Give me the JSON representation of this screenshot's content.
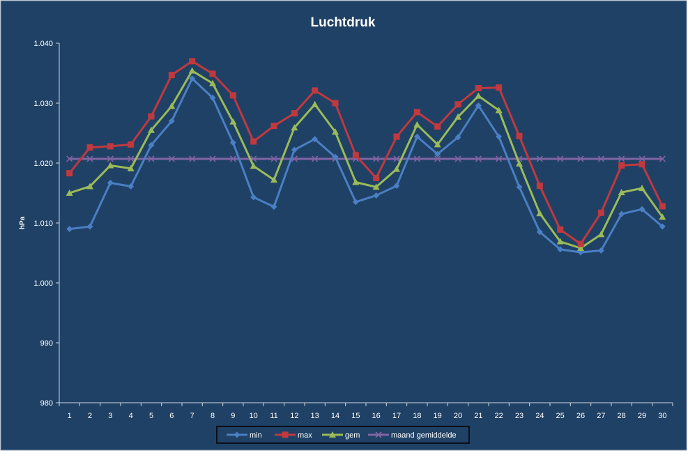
{
  "chart_data": {
    "type": "line",
    "title": "Luchtdruk",
    "ylabel": "hPa",
    "xlabel": "",
    "ylim": [
      980,
      1040
    ],
    "yticks": [
      980,
      990,
      1000,
      1010,
      1020,
      1030,
      1040
    ],
    "ytick_labels": [
      "980",
      "990",
      "1.000",
      "1.010",
      "1.020",
      "1.030",
      "1.040"
    ],
    "categories": [
      "1",
      "2",
      "3",
      "4",
      "5",
      "6",
      "7",
      "8",
      "9",
      "10",
      "11",
      "12",
      "13",
      "14",
      "15",
      "16",
      "17",
      "18",
      "19",
      "20",
      "21",
      "22",
      "23",
      "24",
      "25",
      "26",
      "27",
      "28",
      "29",
      "30"
    ],
    "grid": false,
    "legend_position": "bottom",
    "colors": {
      "background": "#1f4165",
      "text": "#ffffff",
      "axis": "#cfd8e2"
    },
    "series": [
      {
        "name": "min",
        "color": "#4a7fc4",
        "marker": "diamond",
        "values": [
          1009.0,
          1009.4,
          1016.7,
          1016.1,
          1023.0,
          1027.0,
          1034.1,
          1030.9,
          1023.4,
          1014.3,
          1012.7,
          1022.2,
          1024.0,
          1021.0,
          1013.5,
          1014.6,
          1016.2,
          1024.4,
          1021.5,
          1024.3,
          1029.6,
          1024.4,
          1016.0,
          1008.5,
          1005.6,
          1005.1,
          1005.4,
          1011.5,
          1012.3,
          1009.4
        ]
      },
      {
        "name": "max",
        "color": "#c0393f",
        "marker": "square",
        "values": [
          1018.3,
          1022.6,
          1022.8,
          1023.1,
          1027.8,
          1034.7,
          1037.0,
          1034.9,
          1031.3,
          1023.6,
          1026.2,
          1028.3,
          1032.1,
          1030.0,
          1021.3,
          1017.5,
          1024.4,
          1028.5,
          1026.1,
          1029.8,
          1032.5,
          1032.6,
          1024.5,
          1016.2,
          1008.9,
          1006.5,
          1011.7,
          1019.6,
          1019.8,
          1012.8
        ]
      },
      {
        "name": "gem",
        "color": "#9bbb59",
        "marker": "triangle",
        "values": [
          1015.0,
          1016.1,
          1019.6,
          1019.1,
          1025.5,
          1029.5,
          1035.4,
          1033.3,
          1026.9,
          1019.5,
          1017.2,
          1025.9,
          1029.8,
          1025.2,
          1016.8,
          1016.0,
          1019.0,
          1026.4,
          1023.1,
          1027.7,
          1031.2,
          1028.8,
          1019.9,
          1011.6,
          1006.9,
          1005.8,
          1008.1,
          1015.1,
          1015.8,
          1011.0
        ]
      },
      {
        "name": "maand gemiddelde",
        "color": "#8064a2",
        "marker": "x",
        "values": [
          1020.7,
          1020.7,
          1020.7,
          1020.7,
          1020.7,
          1020.7,
          1020.7,
          1020.7,
          1020.7,
          1020.7,
          1020.7,
          1020.7,
          1020.7,
          1020.7,
          1020.7,
          1020.7,
          1020.7,
          1020.7,
          1020.7,
          1020.7,
          1020.7,
          1020.7,
          1020.7,
          1020.7,
          1020.7,
          1020.7,
          1020.7,
          1020.7,
          1020.7,
          1020.7
        ]
      }
    ]
  }
}
